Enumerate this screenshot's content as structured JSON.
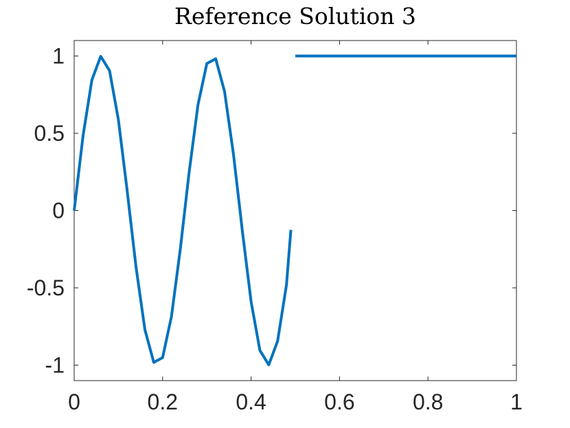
{
  "chart_data": {
    "type": "line",
    "title": "Reference Solution 3",
    "xlabel": "",
    "ylabel": "",
    "xlim": [
      0,
      1
    ],
    "ylim": [
      -1.1,
      1.1
    ],
    "xticks": [
      0,
      0.2,
      0.4,
      0.6,
      0.8,
      1
    ],
    "xtick_labels": [
      "0",
      "0.2",
      "0.4",
      "0.6",
      "0.8",
      "1"
    ],
    "yticks": [
      -1,
      -0.5,
      0,
      0.5,
      1
    ],
    "ytick_labels": [
      "-1",
      "-0.5",
      "0",
      "0.5",
      "1"
    ],
    "grid": false,
    "series": [
      {
        "color": "#0072BD",
        "segments": [
          {
            "x": [
              0,
              0.02,
              0.04,
              0.06,
              0.08,
              0.1,
              0.12,
              0.125,
              0.14,
              0.16,
              0.18,
              0.2,
              0.22,
              0.24,
              0.26,
              0.28,
              0.3,
              0.32,
              0.34,
              0.36,
              0.375,
              0.38,
              0.4,
              0.42,
              0.44,
              0.46,
              0.48,
              0.49
            ],
            "y": [
              0,
              0.482,
              0.844,
              0.998,
              0.905,
              0.588,
              0.125,
              0,
              -0.368,
              -0.771,
              -0.982,
              -0.951,
              -0.685,
              -0.249,
              0.249,
              0.685,
              0.951,
              0.982,
              0.771,
              0.368,
              0,
              -0.125,
              -0.588,
              -0.905,
              -0.998,
              -0.844,
              -0.482,
              -0.125
            ]
          },
          {
            "x": [
              0.5,
              1
            ],
            "y": [
              1,
              1
            ]
          }
        ]
      }
    ]
  }
}
